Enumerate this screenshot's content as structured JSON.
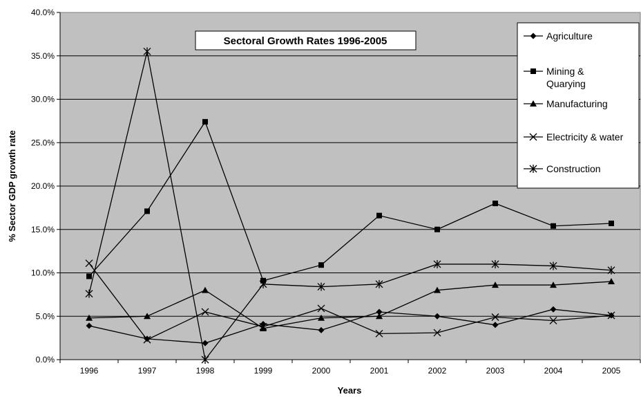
{
  "chart_data": {
    "type": "line",
    "title": "Sectoral Growth Rates 1996-2005",
    "xlabel": "Years",
    "ylabel": "% Sector GDP growth rate",
    "categories": [
      "1996",
      "1997",
      "1998",
      "1999",
      "2000",
      "2001",
      "2002",
      "2003",
      "2004",
      "2005"
    ],
    "ylim": [
      0,
      40
    ],
    "yticks": [
      "0.0%",
      "5.0%",
      "10.0%",
      "15.0%",
      "20.0%",
      "25.0%",
      "30.0%",
      "35.0%",
      "40.0%"
    ],
    "grid": "horizontal",
    "legend_position": "right",
    "plot_background": "#c0c0c0",
    "series": [
      {
        "name": "Agriculture",
        "marker": "diamond",
        "values": [
          3.9,
          2.4,
          1.9,
          4.1,
          3.4,
          5.5,
          5.0,
          4.0,
          5.8,
          5.1
        ]
      },
      {
        "name": "Mining & Quarying",
        "marker": "square",
        "values": [
          9.6,
          17.1,
          27.4,
          9.1,
          10.9,
          16.6,
          15.0,
          18.0,
          15.4,
          15.7
        ]
      },
      {
        "name": "Manufacturing",
        "marker": "triangle",
        "values": [
          4.8,
          5.0,
          8.0,
          3.6,
          4.8,
          5.0,
          8.0,
          8.6,
          8.6,
          9.0
        ]
      },
      {
        "name": "Electricity & water",
        "marker": "x",
        "values": [
          11.1,
          2.3,
          5.5,
          3.8,
          5.9,
          3.0,
          3.1,
          4.9,
          4.5,
          5.1
        ]
      },
      {
        "name": "Construction",
        "marker": "star",
        "values": [
          7.6,
          35.5,
          0.0,
          8.7,
          8.4,
          8.7,
          11.0,
          11.0,
          10.8,
          10.3
        ]
      }
    ]
  }
}
